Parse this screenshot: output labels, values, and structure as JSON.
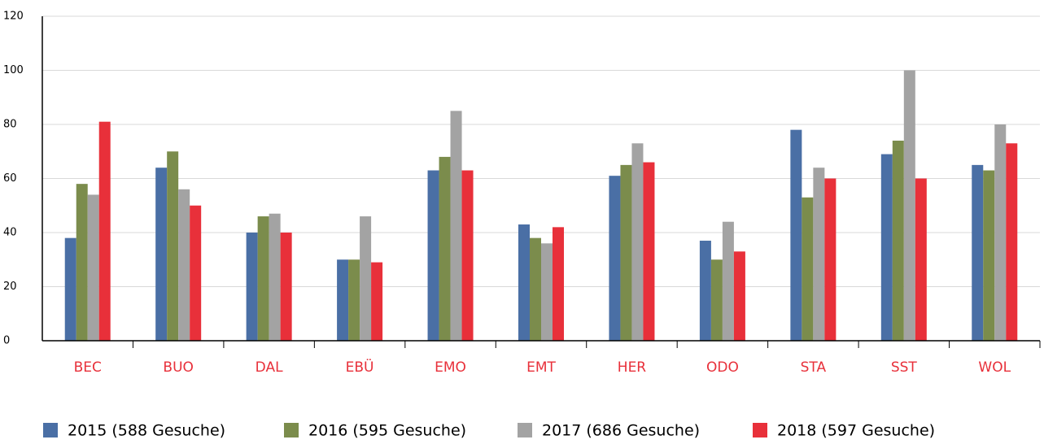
{
  "chart_data": {
    "type": "bar",
    "categories": [
      "BEC",
      "BUO",
      "DAL",
      "EBÜ",
      "EMO",
      "EMT",
      "HER",
      "ODO",
      "STA",
      "SST",
      "WOL"
    ],
    "series": [
      {
        "name": "2015 (588 Gesuche)",
        "color": "#4a6fa5",
        "values": [
          38,
          64,
          40,
          30,
          63,
          43,
          61,
          37,
          78,
          69,
          65
        ]
      },
      {
        "name": "2016 (595 Gesuche)",
        "color": "#7b8c4c",
        "values": [
          58,
          70,
          46,
          30,
          68,
          38,
          65,
          30,
          53,
          74,
          63
        ]
      },
      {
        "name": "2017 (686 Gesuche)",
        "color": "#a3a3a3",
        "values": [
          54,
          56,
          47,
          46,
          85,
          36,
          73,
          44,
          64,
          100,
          80
        ]
      },
      {
        "name": "2018 (597 Gesuche)",
        "color": "#e8303a",
        "values": [
          81,
          50,
          40,
          29,
          63,
          42,
          66,
          33,
          60,
          60,
          73
        ]
      }
    ],
    "ylim": [
      0,
      120
    ],
    "yticks": [
      0,
      20,
      40,
      60,
      80,
      100,
      120
    ],
    "grid": true,
    "legend": "bottom"
  }
}
